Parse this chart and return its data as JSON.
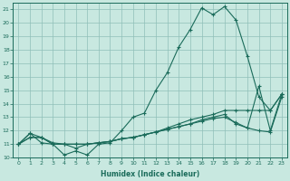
{
  "xlabel": "Humidex (Indice chaleur)",
  "bg_color": "#c8e8e0",
  "grid_color": "#8fbfb8",
  "line_color": "#1a6b5a",
  "xlim": [
    -0.5,
    23.5
  ],
  "ylim": [
    10,
    21.5
  ],
  "xticks": [
    0,
    1,
    2,
    3,
    4,
    5,
    6,
    7,
    8,
    9,
    10,
    11,
    12,
    13,
    14,
    15,
    16,
    17,
    18,
    19,
    20,
    21,
    22,
    23
  ],
  "yticks": [
    10,
    11,
    12,
    13,
    14,
    15,
    16,
    17,
    18,
    19,
    20,
    21
  ],
  "lines": [
    [
      11.0,
      11.8,
      11.1,
      11.0,
      10.2,
      10.5,
      10.2,
      11.0,
      11.1,
      12.0,
      13.0,
      13.3,
      15.0,
      16.3,
      18.2,
      19.5,
      21.1,
      20.6,
      21.2,
      20.2,
      17.5,
      14.5,
      13.5,
      14.7
    ],
    [
      11.0,
      11.8,
      11.5,
      11.1,
      11.0,
      10.7,
      11.0,
      11.1,
      11.2,
      11.4,
      11.5,
      11.7,
      11.9,
      12.1,
      12.3,
      12.5,
      12.8,
      13.0,
      13.2,
      12.5,
      12.2,
      15.3,
      12.0,
      14.7
    ],
    [
      11.0,
      11.5,
      11.5,
      11.0,
      11.0,
      11.0,
      11.0,
      11.1,
      11.2,
      11.4,
      11.5,
      11.7,
      11.9,
      12.2,
      12.5,
      12.8,
      13.0,
      13.2,
      13.5,
      13.5,
      13.5,
      13.5,
      13.5,
      14.7
    ],
    [
      11.0,
      11.5,
      11.5,
      11.0,
      11.0,
      11.0,
      11.0,
      11.1,
      11.2,
      11.4,
      11.5,
      11.7,
      11.9,
      12.1,
      12.3,
      12.5,
      12.7,
      12.9,
      13.0,
      12.6,
      12.2,
      12.0,
      11.9,
      14.5
    ]
  ]
}
